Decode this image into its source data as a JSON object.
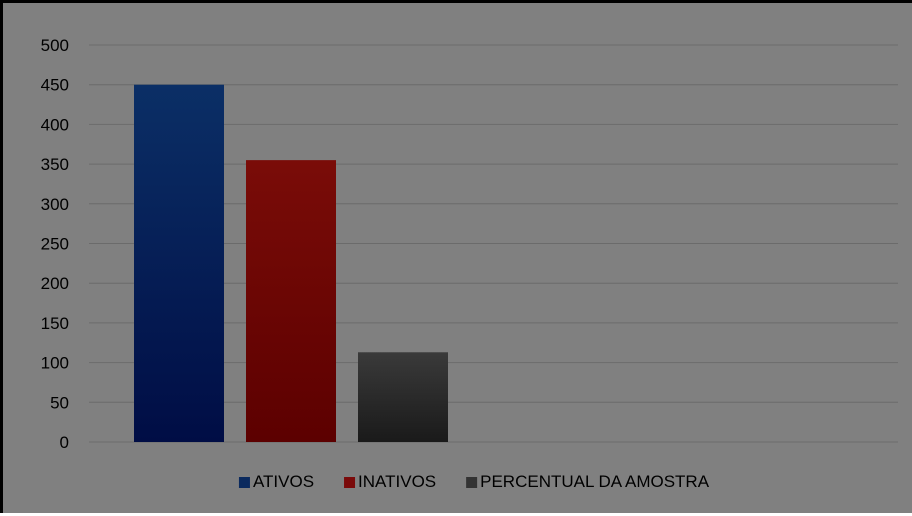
{
  "chart_data": {
    "type": "bar",
    "categories": [
      ""
    ],
    "series": [
      {
        "name": "ATIVOS",
        "values": [
          450
        ],
        "color": "#0b2a5e"
      },
      {
        "name": "INATIVOS",
        "values": [
          355
        ],
        "color": "#7a0a0a"
      },
      {
        "name": "PERCENTUAL DA AMOSTRA",
        "values": [
          113
        ],
        "color": "#333333"
      }
    ],
    "ylim": [
      0,
      500
    ],
    "yticks": [
      "0",
      "50",
      "100",
      "150",
      "200",
      "250",
      "300",
      "350",
      "400",
      "450",
      "500"
    ],
    "grid": true,
    "legend": "bottom",
    "background_color": "#808080",
    "gridline_color": "#6b6b6b"
  }
}
